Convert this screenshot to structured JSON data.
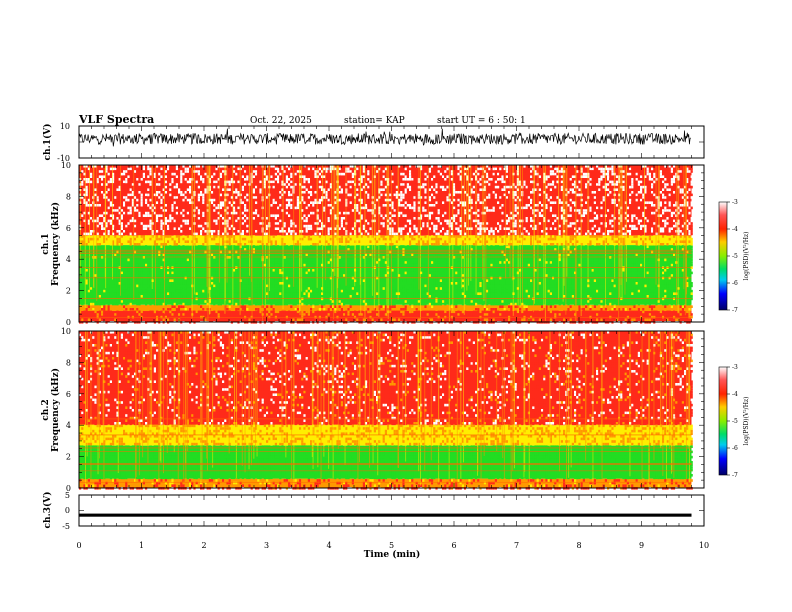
{
  "header": {
    "title": "VLF Spectra",
    "date": "Oct. 22, 2025",
    "station": "station= KAP",
    "start": "start  UT =   6 : 50: 1"
  },
  "chart_data": [
    {
      "type": "line",
      "id": "ch1-waveform",
      "ylabel": "ch.1(V)",
      "ylim": [
        -10,
        10
      ],
      "yticklabels": [
        "10",
        "-10"
      ],
      "xlim": [
        0,
        10
      ],
      "note": "dense noise waveform, mostly between -2 and 6 V, from t=0 to ~9.8 min"
    },
    {
      "type": "heatmap",
      "id": "ch1-spectrogram",
      "ylabel": [
        "ch.1",
        "Frequency (kHz)"
      ],
      "ylim": [
        0,
        10
      ],
      "yticks": [
        0,
        2,
        4,
        6,
        8,
        10
      ],
      "yticklabels": [
        "0",
        "2",
        "4",
        "6",
        "8",
        "10"
      ],
      "xlim": [
        0,
        10
      ],
      "data_xmax": 9.8,
      "bands": [
        {
          "from_khz": 0,
          "to_khz": 0.7,
          "level": -3.7
        },
        {
          "from_khz": 0.7,
          "to_khz": 1.1,
          "level": -4.0
        },
        {
          "from_khz": 1.1,
          "to_khz": 4.9,
          "level": -5.0
        },
        {
          "from_khz": 4.9,
          "to_khz": 5.5,
          "level": -4.3
        },
        {
          "from_khz": 5.5,
          "to_khz": 10,
          "level": -3.4
        }
      ],
      "colorbar": {
        "label": "log(PSD)(V²/Hz)",
        "min": -7,
        "max": -3,
        "ticks": [
          "-3",
          "-4",
          "-5",
          "-6",
          "-7"
        ]
      }
    },
    {
      "type": "heatmap",
      "id": "ch2-spectrogram",
      "ylabel": [
        "ch.2",
        "Frequency (kHz)"
      ],
      "ylim": [
        0,
        10
      ],
      "yticks": [
        0,
        2,
        4,
        6,
        8,
        10
      ],
      "yticklabels": [
        "0",
        "2",
        "4",
        "6",
        "8",
        "10"
      ],
      "xlim": [
        0,
        10
      ],
      "data_xmax": 9.8,
      "bands": [
        {
          "from_khz": 0,
          "to_khz": 0.6,
          "level": -4.0
        },
        {
          "from_khz": 0.6,
          "to_khz": 2.7,
          "level": -5.2
        },
        {
          "from_khz": 2.7,
          "to_khz": 4.0,
          "level": -4.3
        },
        {
          "from_khz": 4.0,
          "to_khz": 10,
          "level": -3.6
        }
      ],
      "colorbar": {
        "label": "log(PSD)(V²/Hz)",
        "min": -7,
        "max": -3,
        "ticks": [
          "-3",
          "-4",
          "-5",
          "-6",
          "-7"
        ]
      }
    },
    {
      "type": "line",
      "id": "ch3-waveform",
      "ylabel": "ch.3(V)",
      "ylim": [
        -5,
        5
      ],
      "yticks": [
        -5,
        0,
        5
      ],
      "yticklabels": [
        "5",
        "0",
        "-5"
      ],
      "xlim": [
        0,
        10
      ],
      "xlabel": "Time (min)",
      "xticks": [
        0,
        1,
        2,
        3,
        4,
        5,
        6,
        7,
        8,
        9,
        10
      ],
      "xticklabels": [
        "0",
        "1",
        "2",
        "3",
        "4",
        "5",
        "6",
        "7",
        "8",
        "9",
        "10"
      ],
      "note": "narrow noise band around -1.5 V"
    }
  ],
  "colors": {
    "red": "#ff2a1a",
    "orange": "#ff9900",
    "yellow": "#ffee00",
    "green": "#22dd22",
    "cyan": "#00ccee",
    "blue": "#0022ff",
    "navy": "#000066",
    "white": "#ffffff"
  }
}
